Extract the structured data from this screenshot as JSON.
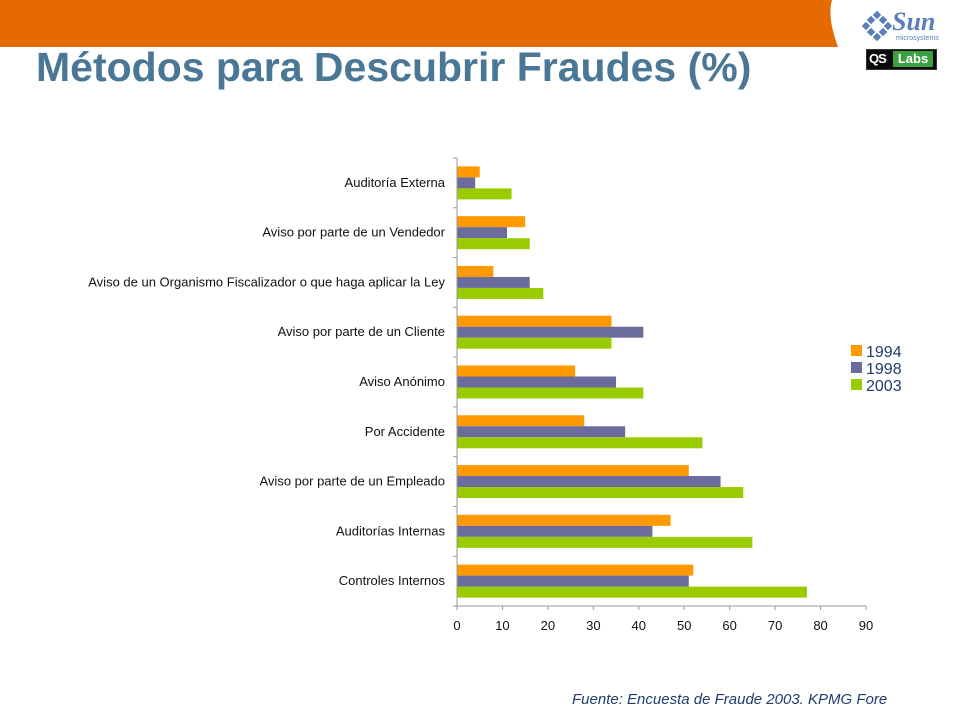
{
  "slide": {
    "title": "Métodos para Descubrir Fraudes (%)",
    "footer": "Fuente: Encuesta de Fraude 2003. KPMG Fore",
    "logo_sun_text": "Sun",
    "logo_sun_sub": "microsystems",
    "logo_qs_text": "QS",
    "logo_labs_text": "Labs",
    "header_color": "#e56b00"
  },
  "chart_data": {
    "type": "bar",
    "orientation": "horizontal",
    "title": "",
    "xlabel": "",
    "ylabel": "",
    "xlim": [
      0,
      90
    ],
    "xticks": [
      0,
      10,
      20,
      30,
      40,
      50,
      60,
      70,
      80,
      90
    ],
    "grid": false,
    "legend_position": "right",
    "categories": [
      "Auditoría Externa",
      "Aviso por parte de un Vendedor",
      "Aviso de un Organismo Fiscalizador o que haga aplicar la Ley",
      "Aviso por parte de un Cliente",
      "Aviso Anónimo",
      "Por Accidente",
      "Aviso por parte de un Empleado",
      "Auditorías Internas",
      "Controles Internos"
    ],
    "series": [
      {
        "name": "1994",
        "color": "#ff9900",
        "values": [
          5,
          15,
          8,
          34,
          26,
          28,
          51,
          47,
          52
        ]
      },
      {
        "name": "1998",
        "color": "#6b6b9c",
        "values": [
          4,
          11,
          16,
          41,
          35,
          37,
          58,
          43,
          51
        ]
      },
      {
        "name": "2003",
        "color": "#99cc00",
        "values": [
          12,
          16,
          19,
          34,
          41,
          54,
          63,
          65,
          77
        ]
      }
    ]
  }
}
